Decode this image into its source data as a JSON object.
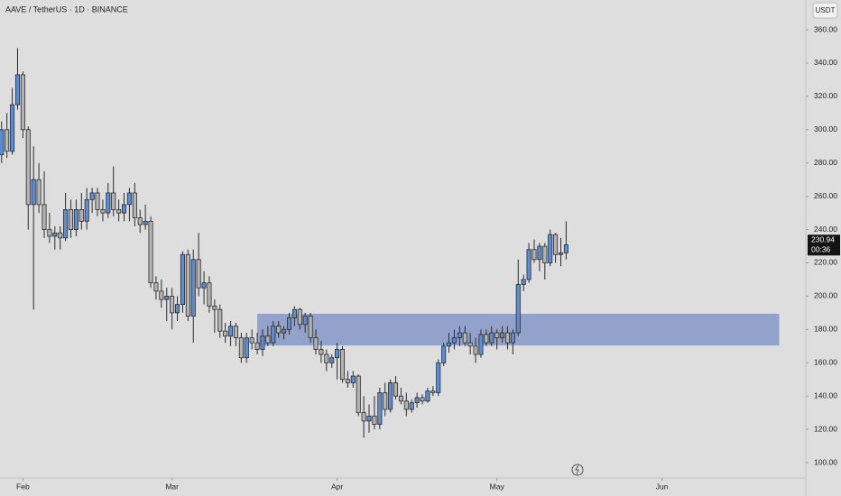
{
  "chart_data": {
    "type": "candlestick",
    "title": "AAVE / TetherUS · 1D · BINANCE",
    "currency": "USDT",
    "categories": [
      null,
      null,
      null,
      null,
      null,
      null,
      null,
      null,
      null,
      null,
      null,
      null,
      null,
      null,
      null,
      null,
      null,
      null,
      null,
      null,
      null,
      null,
      null,
      null,
      null,
      null,
      null,
      null,
      null,
      null,
      null,
      null,
      null,
      null,
      null,
      null,
      null,
      null,
      null,
      null,
      null,
      null,
      null,
      null,
      null,
      null,
      null,
      null,
      null,
      null,
      null,
      null,
      null,
      null,
      null,
      null,
      null,
      null,
      null,
      null,
      null,
      null,
      null,
      null,
      null,
      null,
      null,
      null,
      null,
      null,
      null,
      null,
      null,
      null,
      null,
      null,
      null,
      null,
      null,
      null,
      null,
      null,
      null,
      null,
      null,
      null,
      null,
      null,
      null,
      null,
      null,
      null,
      null,
      null,
      null,
      null,
      null,
      null,
      null,
      null,
      null,
      null,
      null,
      null,
      null,
      null,
      null
    ],
    "open": [
      285,
      300,
      287,
      315,
      333,
      300,
      255,
      270,
      255,
      240,
      236,
      238,
      235,
      252,
      240,
      252,
      245,
      258,
      262,
      252,
      250,
      262,
      252,
      250,
      255,
      262,
      247,
      243,
      245,
      208,
      203,
      198,
      200,
      190,
      195,
      225,
      188,
      222,
      205,
      208,
      194,
      192,
      179,
      176,
      182,
      175,
      163,
      175,
      172,
      168,
      176,
      172,
      182,
      178,
      180,
      187,
      192,
      183,
      188,
      175,
      168,
      165,
      160,
      163,
      168,
      150,
      148,
      152,
      130,
      125,
      128,
      123,
      142,
      132,
      148,
      140,
      137,
      132,
      136,
      139,
      137,
      143,
      142,
      160,
      170,
      172,
      175,
      178,
      172,
      170,
      165,
      177,
      172,
      178,
      175,
      178,
      172,
      178,
      207,
      210,
      228,
      222,
      230,
      220,
      237,
      225,
      226
    ],
    "high": [
      305,
      310,
      325,
      349,
      335,
      302,
      290,
      280,
      275,
      250,
      242,
      242,
      262,
      258,
      258,
      262,
      265,
      265,
      265,
      258,
      268,
      278,
      258,
      262,
      265,
      268,
      252,
      255,
      248,
      212,
      210,
      205,
      205,
      200,
      227,
      228,
      228,
      238,
      215,
      212,
      198,
      195,
      184,
      185,
      184,
      178,
      178,
      180,
      178,
      180,
      182,
      185,
      185,
      182,
      190,
      194,
      193,
      190,
      190,
      180,
      173,
      168,
      165,
      172,
      170,
      155,
      155,
      153,
      140,
      135,
      140,
      145,
      148,
      150,
      152,
      145,
      142,
      138,
      142,
      141,
      145,
      146,
      162,
      172,
      178,
      180,
      182,
      182,
      178,
      175,
      180,
      180,
      182,
      180,
      182,
      182,
      180,
      222,
      213,
      232,
      234,
      232,
      232,
      240,
      238,
      235,
      245
    ],
    "low": [
      280,
      283,
      285,
      312,
      295,
      240,
      192,
      250,
      235,
      232,
      228,
      228,
      233,
      235,
      236,
      240,
      240,
      250,
      248,
      245,
      247,
      248,
      245,
      245,
      245,
      242,
      238,
      240,
      205,
      198,
      193,
      185,
      180,
      185,
      190,
      185,
      172,
      200,
      195,
      190,
      178,
      175,
      172,
      170,
      170,
      160,
      160,
      168,
      165,
      164,
      170,
      170,
      175,
      174,
      177,
      182,
      180,
      178,
      172,
      165,
      160,
      155,
      157,
      150,
      148,
      145,
      145,
      128,
      115,
      118,
      120,
      120,
      128,
      130,
      138,
      135,
      128,
      130,
      133,
      135,
      136,
      140,
      140,
      158,
      166,
      168,
      170,
      170,
      165,
      160,
      163,
      170,
      170,
      168,
      172,
      168,
      165,
      176,
      203,
      208,
      220,
      215,
      210,
      218,
      220,
      218,
      222
    ],
    "close": [
      300,
      287,
      315,
      333,
      300,
      255,
      270,
      255,
      240,
      236,
      238,
      235,
      252,
      240,
      252,
      245,
      258,
      262,
      252,
      250,
      262,
      252,
      250,
      255,
      262,
      247,
      243,
      245,
      208,
      203,
      198,
      200,
      190,
      195,
      225,
      188,
      222,
      205,
      208,
      194,
      192,
      179,
      176,
      182,
      175,
      163,
      175,
      172,
      168,
      176,
      172,
      182,
      178,
      180,
      187,
      192,
      183,
      188,
      175,
      168,
      165,
      160,
      163,
      168,
      150,
      148,
      152,
      130,
      125,
      128,
      123,
      142,
      132,
      148,
      140,
      137,
      132,
      136,
      139,
      137,
      143,
      142,
      160,
      170,
      172,
      175,
      178,
      172,
      170,
      165,
      177,
      172,
      178,
      175,
      178,
      172,
      178,
      207,
      210,
      228,
      222,
      230,
      220,
      237,
      225,
      226,
      230.94
    ],
    "up_color": "#5b8ed8",
    "down_color": "#b4b4b4",
    "zone": {
      "low": 170.4,
      "high": 189.4,
      "start": 48,
      "end": 146,
      "color": "#8d9ec8"
    },
    "last_price": 230.94,
    "countdown": "00:36",
    "xlim": [
      -0.3,
      151
    ],
    "xticks": [
      {
        "value": 4,
        "label": "Feb"
      },
      {
        "value": 32,
        "label": "Mar"
      },
      {
        "value": 63,
        "label": "Apr"
      },
      {
        "value": 93,
        "label": "May"
      },
      {
        "value": 124,
        "label": "Jun"
      }
    ],
    "ylim": [
      90.8,
      377.9
    ],
    "yticks": [
      {
        "value": 100,
        "label": "100.00"
      },
      {
        "value": 120,
        "label": "120.00"
      },
      {
        "value": 140,
        "label": "140.00"
      },
      {
        "value": 160,
        "label": "160.00"
      },
      {
        "value": 180,
        "label": "180.00"
      },
      {
        "value": 200,
        "label": "200.00"
      },
      {
        "value": 220,
        "label": "220.00"
      },
      {
        "value": 240,
        "label": "240.00"
      },
      {
        "value": 260,
        "label": "260.00"
      },
      {
        "value": 280,
        "label": "280.00"
      },
      {
        "value": 300,
        "label": "300.00"
      },
      {
        "value": 320,
        "label": "320.00"
      },
      {
        "value": 340,
        "label": "340.00"
      },
      {
        "value": 360,
        "label": "360.00"
      }
    ]
  }
}
